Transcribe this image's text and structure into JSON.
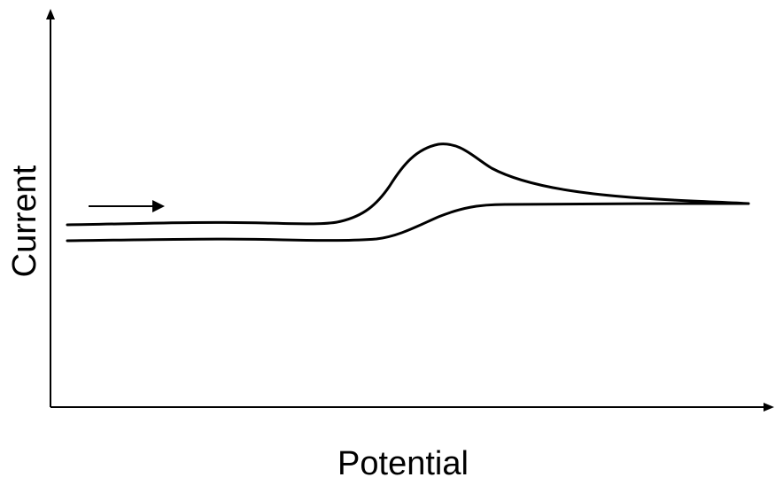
{
  "axes": {
    "y_label": "Current",
    "x_label": "Potential"
  }
}
